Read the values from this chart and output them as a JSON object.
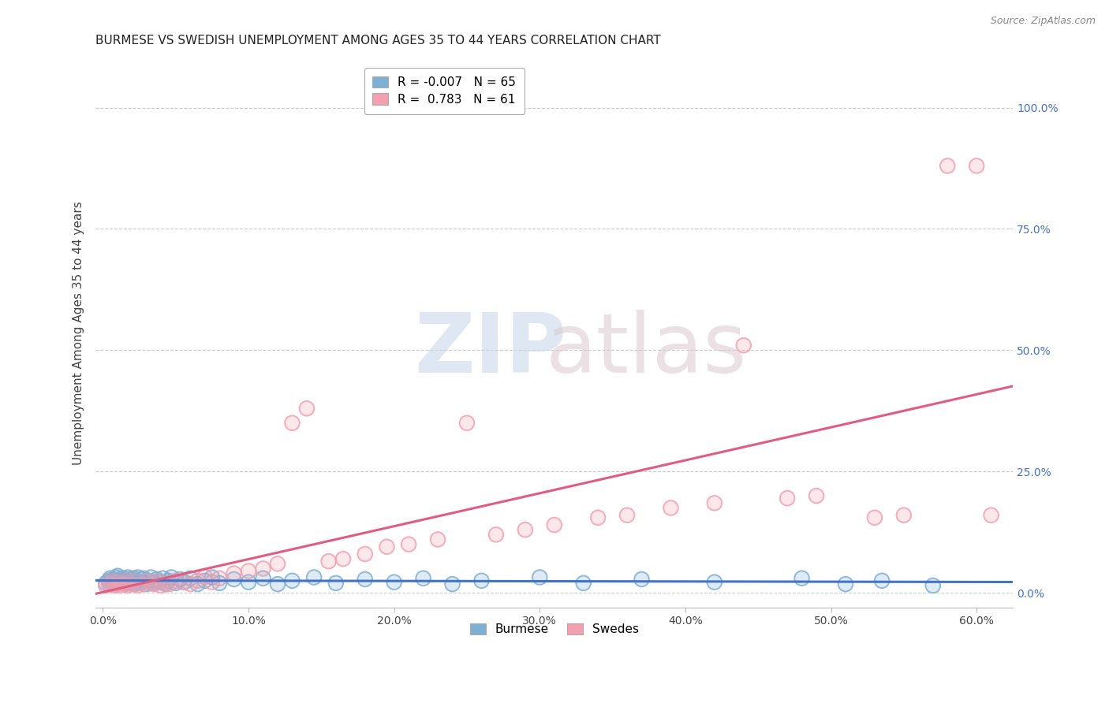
{
  "title": "BURMESE VS SWEDISH UNEMPLOYMENT AMONG AGES 35 TO 44 YEARS CORRELATION CHART",
  "source_text": "Source: ZipAtlas.com",
  "ylabel": "Unemployment Among Ages 35 to 44 years",
  "xlim": [
    -0.005,
    0.625
  ],
  "ylim": [
    -0.03,
    1.1
  ],
  "xticks": [
    0.0,
    0.1,
    0.2,
    0.3,
    0.4,
    0.5,
    0.6
  ],
  "xticklabels": [
    "0.0%",
    "10.0%",
    "20.0%",
    "30.0%",
    "40.0%",
    "50.0%",
    "60.0%"
  ],
  "yticks_right": [
    0.0,
    0.25,
    0.5,
    0.75,
    1.0
  ],
  "yticks_right_labels": [
    "0.0%",
    "25.0%",
    "50.0%",
    "75.0%",
    "100.0%"
  ],
  "burmese_color": "#7eb0d4",
  "swedes_color": "#f4a0b0",
  "burmese_line_color": "#4472c4",
  "swedes_line_color": "#e05c80",
  "grid_color": "#cccccc",
  "background_color": "#ffffff",
  "title_color": "#222222",
  "right_axis_color": "#4472c4",
  "legend_R_burmese": "-0.007",
  "legend_N_burmese": "65",
  "legend_R_swedes": "0.783",
  "legend_N_swedes": "61",
  "burmese_x": [
    0.002,
    0.004,
    0.005,
    0.006,
    0.007,
    0.008,
    0.009,
    0.01,
    0.01,
    0.011,
    0.012,
    0.013,
    0.014,
    0.015,
    0.016,
    0.017,
    0.018,
    0.019,
    0.02,
    0.021,
    0.022,
    0.023,
    0.024,
    0.025,
    0.026,
    0.027,
    0.028,
    0.03,
    0.031,
    0.033,
    0.035,
    0.037,
    0.039,
    0.041,
    0.043,
    0.045,
    0.047,
    0.05,
    0.053,
    0.056,
    0.06,
    0.065,
    0.07,
    0.075,
    0.08,
    0.09,
    0.1,
    0.11,
    0.12,
    0.13,
    0.145,
    0.16,
    0.18,
    0.2,
    0.22,
    0.24,
    0.26,
    0.3,
    0.33,
    0.37,
    0.42,
    0.48,
    0.51,
    0.535,
    0.57
  ],
  "burmese_y": [
    0.02,
    0.025,
    0.03,
    0.022,
    0.028,
    0.018,
    0.032,
    0.025,
    0.035,
    0.02,
    0.028,
    0.022,
    0.03,
    0.018,
    0.025,
    0.032,
    0.02,
    0.028,
    0.022,
    0.03,
    0.018,
    0.025,
    0.032,
    0.02,
    0.028,
    0.022,
    0.03,
    0.018,
    0.025,
    0.032,
    0.02,
    0.028,
    0.022,
    0.03,
    0.018,
    0.025,
    0.032,
    0.02,
    0.028,
    0.022,
    0.03,
    0.018,
    0.025,
    0.032,
    0.02,
    0.028,
    0.022,
    0.03,
    0.018,
    0.025,
    0.032,
    0.02,
    0.028,
    0.022,
    0.03,
    0.018,
    0.025,
    0.032,
    0.02,
    0.028,
    0.022,
    0.03,
    0.018,
    0.025,
    0.015
  ],
  "swedes_x": [
    0.002,
    0.004,
    0.005,
    0.006,
    0.008,
    0.009,
    0.01,
    0.011,
    0.012,
    0.013,
    0.015,
    0.016,
    0.017,
    0.018,
    0.02,
    0.022,
    0.024,
    0.026,
    0.028,
    0.03,
    0.033,
    0.035,
    0.038,
    0.04,
    0.043,
    0.046,
    0.05,
    0.055,
    0.06,
    0.065,
    0.07,
    0.075,
    0.08,
    0.09,
    0.1,
    0.11,
    0.12,
    0.13,
    0.14,
    0.155,
    0.165,
    0.18,
    0.195,
    0.21,
    0.23,
    0.25,
    0.27,
    0.29,
    0.31,
    0.34,
    0.36,
    0.39,
    0.42,
    0.44,
    0.47,
    0.49,
    0.53,
    0.55,
    0.58,
    0.6,
    0.61
  ],
  "swedes_y": [
    0.015,
    0.02,
    0.018,
    0.025,
    0.015,
    0.022,
    0.018,
    0.025,
    0.015,
    0.02,
    0.018,
    0.025,
    0.015,
    0.022,
    0.018,
    0.025,
    0.015,
    0.02,
    0.018,
    0.025,
    0.022,
    0.018,
    0.025,
    0.015,
    0.02,
    0.018,
    0.025,
    0.022,
    0.018,
    0.025,
    0.033,
    0.022,
    0.03,
    0.04,
    0.045,
    0.05,
    0.06,
    0.35,
    0.38,
    0.065,
    0.07,
    0.08,
    0.095,
    0.1,
    0.11,
    0.35,
    0.12,
    0.13,
    0.14,
    0.155,
    0.16,
    0.175,
    0.185,
    0.51,
    0.195,
    0.2,
    0.155,
    0.16,
    0.88,
    0.88,
    0.16
  ],
  "watermark_zip_color": "#c8d8ea",
  "watermark_atlas_color": "#dcc8cc"
}
